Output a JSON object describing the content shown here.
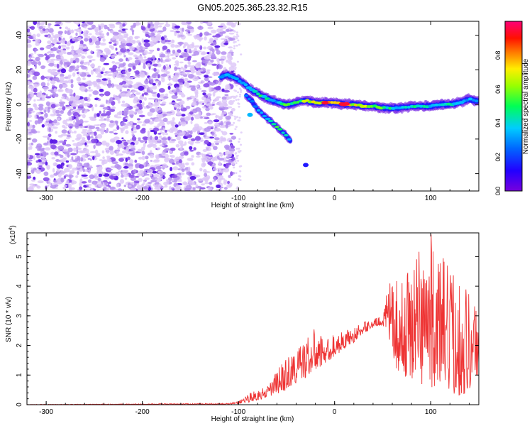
{
  "figure": {
    "title": "GN05.2025.365.23.32.R15"
  },
  "chart_data": [
    {
      "type": "heatmap",
      "title": "GN05.2025.365.23.32.R15",
      "xlabel": "Height of straight line (km)",
      "ylabel": "Frequency (Hz)",
      "xlim": [
        -320,
        150
      ],
      "ylim": [
        -50,
        48
      ],
      "xticks": [
        -300,
        -200,
        -100,
        0,
        100
      ],
      "yticks": [
        -40,
        -20,
        0,
        20,
        40
      ],
      "colorbar": {
        "label": "Normalized spectral amplitude",
        "range": [
          0,
          1
        ],
        "ticks": [
          0.0,
          0.2,
          0.4,
          0.6,
          0.8
        ],
        "colormap": [
          "#7700dd",
          "#0033ff",
          "#00ccff",
          "#00ff44",
          "#aaff00",
          "#ffee00",
          "#ff6600",
          "#ff0000",
          "#ff0088"
        ]
      },
      "noise_region": {
        "x": [
          -320,
          -105
        ],
        "y": [
          -50,
          48
        ],
        "amplitude": 0.15
      },
      "ridge_main": {
        "x": [
          -118,
          -112,
          -106,
          -100,
          -94,
          -88,
          -82,
          -76,
          -70,
          -64,
          -58,
          -52,
          -46,
          -40,
          -34,
          -28,
          -20,
          -10,
          0,
          10,
          20,
          30,
          40,
          50,
          60,
          70,
          80,
          90,
          100,
          110,
          120,
          130,
          140,
          150
        ],
        "freq": [
          16,
          17,
          16,
          14,
          12,
          9,
          7,
          5,
          3.5,
          2,
          1,
          0,
          0,
          1,
          2,
          2,
          1,
          1,
          1,
          0,
          0,
          -1,
          -1,
          -2,
          -2,
          -2,
          -1,
          -1,
          -1,
          0,
          0,
          1,
          3,
          2
        ],
        "amp": [
          0.35,
          0.4,
          0.45,
          0.4,
          0.45,
          0.4,
          0.45,
          0.5,
          0.45,
          0.4,
          0.4,
          0.55,
          0.6,
          0.6,
          0.65,
          0.7,
          0.75,
          0.8,
          0.9,
          0.95,
          0.75,
          0.7,
          0.6,
          0.55,
          0.5,
          0.45,
          0.45,
          0.45,
          0.45,
          0.45,
          0.45,
          0.4,
          0.4,
          0.4
        ]
      },
      "ridge_secondary": {
        "x": [
          -92,
          -86,
          -80,
          -74,
          -68,
          -62,
          -56,
          -50,
          -46
        ],
        "freq": [
          5,
          2,
          -3,
          -6,
          -9,
          -12,
          -15,
          -18,
          -21
        ],
        "amp": [
          0.3,
          0.3,
          0.35,
          0.4,
          0.45,
          0.5,
          0.5,
          0.45,
          0.4
        ]
      },
      "isolated_spots": [
        {
          "x": -88,
          "freq": -6,
          "amp": 0.35
        },
        {
          "x": -30,
          "freq": -35,
          "amp": 0.15
        }
      ]
    },
    {
      "type": "line",
      "xlabel": "Height of straight line (km)",
      "ylabel": "SNR (10 * v/v)",
      "y_scale_label": "(x10",
      "y_scale_exponent": "4",
      "xlim": [
        -320,
        150
      ],
      "ylim": [
        0,
        5.8
      ],
      "xticks": [
        -300,
        -200,
        -100,
        0,
        100
      ],
      "yticks": [
        0,
        1,
        2,
        3,
        4,
        5
      ],
      "series": [
        {
          "name": "SNR",
          "color": "#ee3333",
          "envelope": {
            "x": [
              -320,
              -110,
              -100,
              -90,
              -80,
              -70,
              -60,
              -50,
              -40,
              -30,
              -20,
              -10,
              0,
              10,
              20,
              30,
              40,
              50,
              55,
              60,
              70,
              80,
              90,
              100,
              110,
              120,
              130,
              140,
              150
            ],
            "baseline": [
              0,
              0.01,
              0.03,
              0.08,
              0.15,
              0.25,
              0.35,
              0.5,
              0.7,
              0.9,
              1.1,
              1.4,
              1.6,
              1.9,
              2.1,
              2.4,
              2.6,
              2.7,
              2.5,
              1.4,
              1.0,
              0.8,
              0.7,
              0.6,
              0.5,
              0.4,
              0.3,
              0.4,
              1.0
            ],
            "peak": [
              0.01,
              0.05,
              0.12,
              0.4,
              0.5,
              0.6,
              1.2,
              1.6,
              1.9,
              2.3,
              2.6,
              2.2,
              2.4,
              2.5,
              2.6,
              2.8,
              2.9,
              3.0,
              3.9,
              4.3,
              4.1,
              5.2,
              5.6,
              5.8,
              5.2,
              4.6,
              4.5,
              4.0,
              3.5
            ]
          }
        }
      ]
    }
  ]
}
